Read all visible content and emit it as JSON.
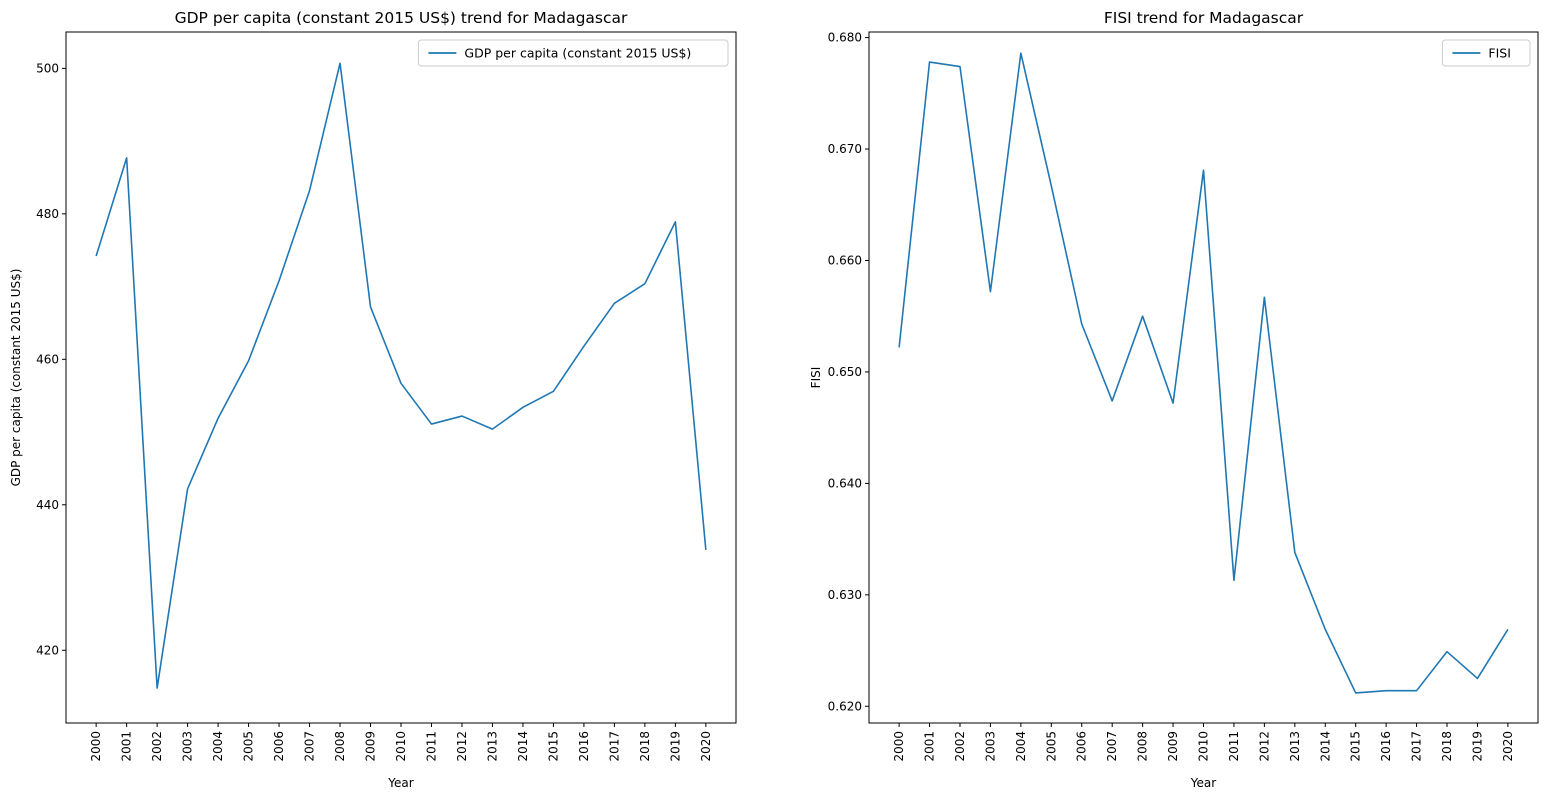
{
  "chart_data": [
    {
      "type": "line",
      "title": "GDP per capita (constant 2015 US$) trend for Madagascar",
      "xlabel": "Year",
      "ylabel": "GDP per capita (constant 2015 US$)",
      "ylim": [
        410,
        505
      ],
      "yticks": [
        420,
        440,
        460,
        480,
        500
      ],
      "ytick_labels": [
        "420",
        "440",
        "460",
        "480",
        "500"
      ],
      "legend_position": "top-right",
      "grid": false,
      "x": [
        "2000",
        "2001",
        "2002",
        "2003",
        "2004",
        "2005",
        "2006",
        "2007",
        "2008",
        "2009",
        "2010",
        "2011",
        "2012",
        "2013",
        "2014",
        "2015",
        "2016",
        "2017",
        "2018",
        "2019",
        "2020"
      ],
      "series": [
        {
          "name": "GDP per capita (constant 2015 US$)",
          "color": "#1f77b4",
          "values": [
            474.2,
            487.7,
            414.8,
            442.2,
            451.9,
            459.8,
            470.8,
            483.2,
            500.7,
            467.2,
            456.7,
            451.1,
            452.2,
            450.4,
            453.4,
            455.6,
            461.8,
            467.7,
            470.4,
            478.9,
            433.8
          ]
        }
      ]
    },
    {
      "type": "line",
      "title": "FISI trend for Madagascar",
      "xlabel": "Year",
      "ylabel": "FISI",
      "ylim": [
        0.6185,
        0.6805
      ],
      "yticks": [
        0.62,
        0.63,
        0.64,
        0.65,
        0.66,
        0.67,
        0.68
      ],
      "ytick_labels": [
        "0.620",
        "0.630",
        "0.640",
        "0.650",
        "0.660",
        "0.670",
        "0.680"
      ],
      "legend_position": "top-right",
      "grid": false,
      "x": [
        "2000",
        "2001",
        "2002",
        "2003",
        "2004",
        "2005",
        "2006",
        "2007",
        "2008",
        "2009",
        "2010",
        "2011",
        "2012",
        "2013",
        "2014",
        "2015",
        "2016",
        "2017",
        "2018",
        "2019",
        "2020"
      ],
      "series": [
        {
          "name": "FISI",
          "color": "#1f77b4",
          "values": [
            0.6522,
            0.6778,
            0.6774,
            0.6572,
            0.6786,
            0.6667,
            0.6543,
            0.6474,
            0.655,
            0.6472,
            0.6681,
            0.6313,
            0.6567,
            0.6338,
            0.6269,
            0.6212,
            0.6214,
            0.6214,
            0.6249,
            0.6225,
            0.6269
          ]
        }
      ]
    }
  ]
}
